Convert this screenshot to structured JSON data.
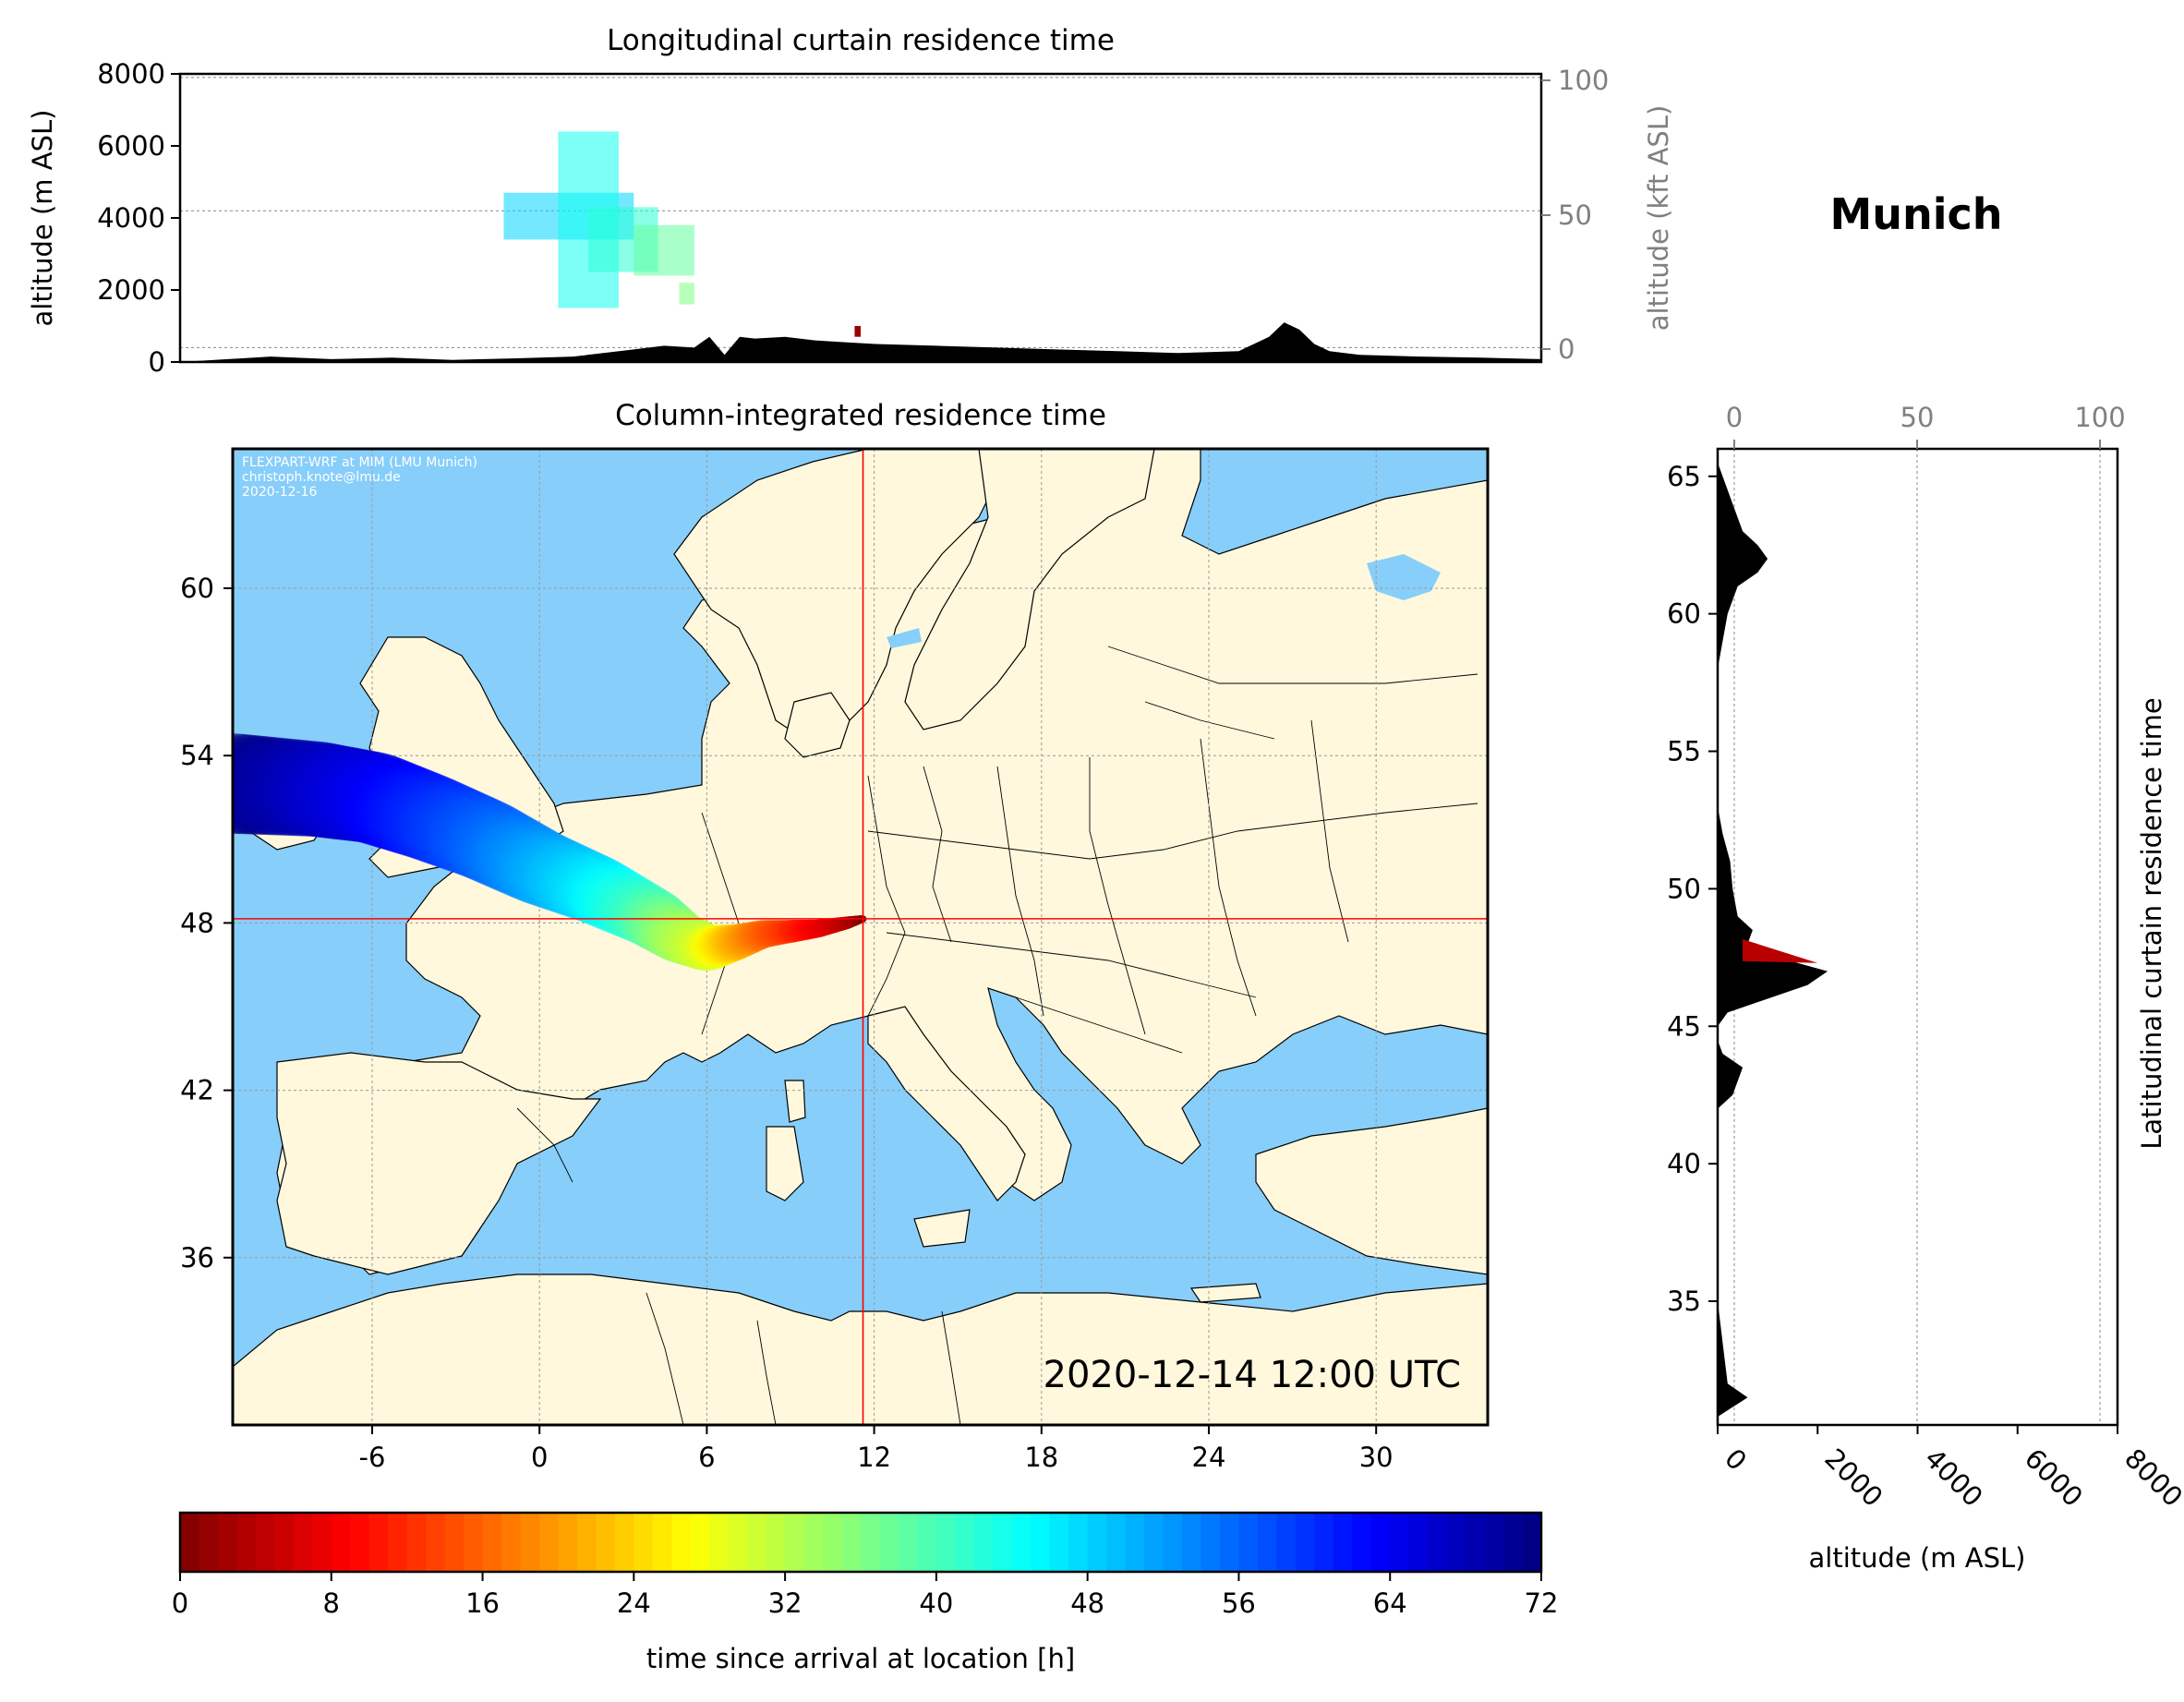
{
  "location_name": "Munich",
  "timestamp": "2020-12-14 12:00 UTC",
  "credit": [
    "FLEXPART-WRF at MIM (LMU Munich)",
    "christoph.knote@lmu.de",
    "2020-12-16"
  ],
  "colors": {
    "sea": "#87CEFA",
    "land": "#FFF8DC",
    "crosshair": "#FF0000",
    "terrain": "#000000",
    "colormap": "jet_r"
  },
  "chart_data": [
    {
      "type": "heatmap",
      "name": "longitudinal",
      "title": "Longitudinal curtain residence time",
      "ylabel": "altitude (m ASL)",
      "ylim": [
        0,
        8000
      ],
      "yticks": [
        "0",
        "2000",
        "4000",
        "6000",
        "8000"
      ],
      "y2label": "altitude (kft ASL)",
      "y2ticks": [
        "0",
        "50",
        "100"
      ],
      "grid": true,
      "terrain_lon": [
        -11,
        -8,
        -6,
        -4,
        -2,
        0,
        2,
        4,
        5,
        6,
        6.5,
        7,
        7.5,
        8,
        9,
        10,
        11,
        12,
        14,
        16,
        18,
        20,
        22,
        24,
        25,
        25.5,
        26,
        26.5,
        27,
        28,
        30,
        32,
        34
      ],
      "terrain_m": [
        0,
        150,
        80,
        120,
        60,
        100,
        150,
        350,
        450,
        400,
        700,
        200,
        700,
        650,
        700,
        600,
        550,
        500,
        450,
        400,
        350,
        300,
        250,
        300,
        700,
        1100,
        900,
        500,
        300,
        200,
        150,
        120,
        80
      ],
      "cells": [
        {
          "lon": [
            -0.3,
            4.0
          ],
          "alt": [
            3400,
            4700
          ],
          "hours": 48
        },
        {
          "lon": [
            1.5,
            3.5
          ],
          "alt": [
            1500,
            6400
          ],
          "hours": 44
        },
        {
          "lon": [
            2.5,
            4.8
          ],
          "alt": [
            2500,
            4300
          ],
          "hours": 42
        },
        {
          "lon": [
            4.0,
            6.0
          ],
          "alt": [
            2400,
            3800
          ],
          "hours": 38
        },
        {
          "lon": [
            5.5,
            6.0
          ],
          "alt": [
            1600,
            2200
          ],
          "hours": 36
        },
        {
          "lon": [
            11.3,
            11.5
          ],
          "alt": [
            700,
            1000
          ],
          "hours": 2
        }
      ]
    },
    {
      "type": "heatmap",
      "name": "column",
      "title": "Column-integrated residence time",
      "xlim": [
        -11,
        34
      ],
      "ylim": [
        30,
        65
      ],
      "xticks": [
        "-6",
        "0",
        "6",
        "12",
        "18",
        "24",
        "30"
      ],
      "yticks": [
        "36",
        "42",
        "48",
        "54",
        "60"
      ],
      "crosshair": {
        "lon": 11.6,
        "lat": 48.15
      },
      "grid": true,
      "trajectory": {
        "lon": [
          -11,
          -8,
          -6,
          -4,
          -2,
          0,
          2,
          4,
          5,
          6,
          7,
          8,
          9,
          10,
          11,
          11.6
        ],
        "lat": [
          53.0,
          52.8,
          52.5,
          51.8,
          51.0,
          50.0,
          49.2,
          48.2,
          47.5,
          47.1,
          47.3,
          47.6,
          47.7,
          47.8,
          48.0,
          48.15
        ],
        "hours": [
          72,
          68,
          65,
          61,
          57,
          52,
          47,
          40,
          34,
          30,
          22,
          16,
          12,
          8,
          4,
          0
        ]
      }
    },
    {
      "type": "heatmap",
      "name": "latitudinal",
      "title": "Latitudinal curtain residence time",
      "xlabel": "altitude (m ASL)",
      "xlim": [
        0,
        8000
      ],
      "xticks": [
        "0",
        "2000",
        "4000",
        "6000",
        "8000"
      ],
      "x2ticks": [
        "0",
        "50",
        "100"
      ],
      "ylim": [
        30.5,
        66
      ],
      "yticks": [
        "35",
        "40",
        "45",
        "50",
        "55",
        "60",
        "65"
      ],
      "grid": true,
      "terrain_lat": [
        30.5,
        30.8,
        31.5,
        32,
        35,
        40,
        42,
        42.5,
        43.5,
        44,
        44.5,
        45,
        45.5,
        46,
        46.5,
        47,
        47.5,
        48,
        48.5,
        49,
        50,
        51,
        52,
        53,
        53.5,
        55,
        58,
        59,
        60,
        61,
        61.5,
        62,
        62.5,
        63,
        64,
        65,
        65.5,
        66
      ],
      "terrain_m": [
        0,
        0,
        600,
        200,
        0,
        0,
        0,
        300,
        500,
        100,
        0,
        0,
        200,
        1000,
        1800,
        2200,
        1200,
        600,
        700,
        400,
        300,
        250,
        100,
        0,
        0,
        0,
        0,
        100,
        200,
        400,
        800,
        1000,
        800,
        500,
        300,
        100,
        0,
        0
      ],
      "cells": [
        {
          "lat": [
            47.3,
            48.3
          ],
          "alt": [
            500,
            2000
          ],
          "hours": 4
        }
      ]
    },
    {
      "type": "heatmap",
      "name": "colorbar",
      "label": "time since arrival at location [h]",
      "range": [
        0,
        72
      ],
      "ticks": [
        "0",
        "8",
        "16",
        "24",
        "32",
        "40",
        "48",
        "56",
        "64",
        "72"
      ]
    }
  ]
}
